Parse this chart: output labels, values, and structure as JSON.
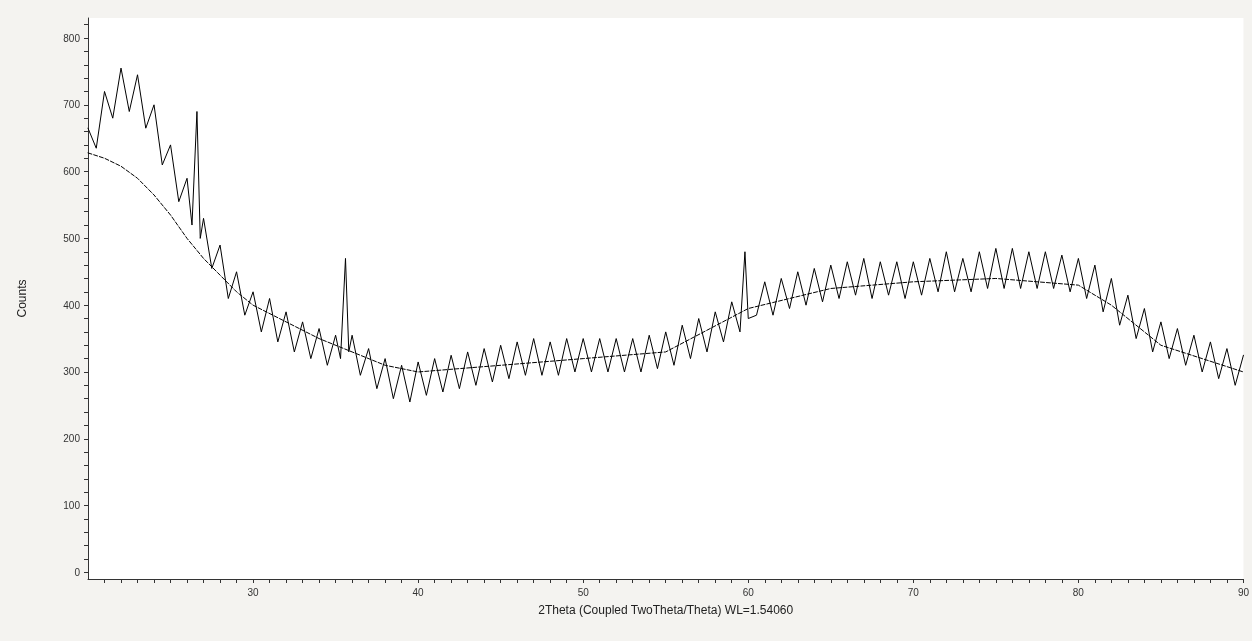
{
  "chart_data": {
    "type": "line",
    "xlabel": "2Theta (Coupled TwoTheta/Theta) WL=1.54060",
    "ylabel": "Counts",
    "xlim": [
      20,
      90
    ],
    "xticks": [
      {
        "value": 21,
        "label": null
      },
      {
        "value": 22,
        "label": null
      },
      {
        "value": 23,
        "label": null
      },
      {
        "value": 24,
        "label": null
      },
      {
        "value": 25,
        "label": null
      },
      {
        "value": 26,
        "label": null
      },
      {
        "value": 27,
        "label": null
      },
      {
        "value": 28,
        "label": null
      },
      {
        "value": 29,
        "label": null
      },
      30,
      {
        "value": 31,
        "label": null
      },
      {
        "value": 32,
        "label": null
      },
      {
        "value": 33,
        "label": null
      },
      {
        "value": 34,
        "label": null
      },
      {
        "value": 35,
        "label": null
      },
      {
        "value": 36,
        "label": null
      },
      {
        "value": 37,
        "label": null
      },
      {
        "value": 38,
        "label": null
      },
      {
        "value": 39,
        "label": null
      },
      40,
      {
        "value": 41,
        "label": null
      },
      {
        "value": 42,
        "label": null
      },
      {
        "value": 43,
        "label": null
      },
      {
        "value": 44,
        "label": null
      },
      {
        "value": 45,
        "label": null
      },
      {
        "value": 46,
        "label": null
      },
      {
        "value": 47,
        "label": null
      },
      {
        "value": 48,
        "label": null
      },
      {
        "value": 49,
        "label": null
      },
      50,
      {
        "value": 51,
        "label": null
      },
      {
        "value": 52,
        "label": null
      },
      {
        "value": 53,
        "label": null
      },
      {
        "value": 54,
        "label": null
      },
      {
        "value": 55,
        "label": null
      },
      {
        "value": 56,
        "label": null
      },
      {
        "value": 57,
        "label": null
      },
      {
        "value": 58,
        "label": null
      },
      {
        "value": 59,
        "label": null
      },
      60,
      {
        "value": 61,
        "label": null
      },
      {
        "value": 62,
        "label": null
      },
      {
        "value": 63,
        "label": null
      },
      {
        "value": 64,
        "label": null
      },
      {
        "value": 65,
        "label": null
      },
      {
        "value": 66,
        "label": null
      },
      {
        "value": 67,
        "label": null
      },
      {
        "value": 68,
        "label": null
      },
      {
        "value": 69,
        "label": null
      },
      70,
      {
        "value": 71,
        "label": null
      },
      {
        "value": 72,
        "label": null
      },
      {
        "value": 73,
        "label": null
      },
      {
        "value": 74,
        "label": null
      },
      {
        "value": 75,
        "label": null
      },
      {
        "value": 76,
        "label": null
      },
      {
        "value": 77,
        "label": null
      },
      {
        "value": 78,
        "label": null
      },
      {
        "value": 79,
        "label": null
      },
      80,
      {
        "value": 81,
        "label": null
      },
      {
        "value": 82,
        "label": null
      },
      {
        "value": 83,
        "label": null
      },
      {
        "value": 84,
        "label": null
      },
      {
        "value": 85,
        "label": null
      },
      {
        "value": 86,
        "label": null
      },
      {
        "value": 87,
        "label": null
      },
      {
        "value": 88,
        "label": null
      },
      {
        "value": 89,
        "label": null
      },
      90
    ],
    "ylim": [
      -10,
      830
    ],
    "yticks": [
      0,
      {
        "value": 20,
        "label": null
      },
      {
        "value": 40,
        "label": null
      },
      {
        "value": 60,
        "label": null
      },
      {
        "value": 80,
        "label": null
      },
      100,
      {
        "value": 120,
        "label": null
      },
      {
        "value": 140,
        "label": null
      },
      {
        "value": 160,
        "label": null
      },
      {
        "value": 180,
        "label": null
      },
      200,
      {
        "value": 220,
        "label": null
      },
      {
        "value": 240,
        "label": null
      },
      {
        "value": 260,
        "label": null
      },
      {
        "value": 280,
        "label": null
      },
      300,
      {
        "value": 320,
        "label": null
      },
      {
        "value": 340,
        "label": null
      },
      {
        "value": 360,
        "label": null
      },
      {
        "value": 380,
        "label": null
      },
      400,
      {
        "value": 420,
        "label": null
      },
      {
        "value": 440,
        "label": null
      },
      {
        "value": 460,
        "label": null
      },
      {
        "value": 480,
        "label": null
      },
      500,
      {
        "value": 520,
        "label": null
      },
      {
        "value": 540,
        "label": null
      },
      {
        "value": 560,
        "label": null
      },
      {
        "value": 580,
        "label": null
      },
      600,
      {
        "value": 620,
        "label": null
      },
      {
        "value": 640,
        "label": null
      },
      {
        "value": 660,
        "label": null
      },
      {
        "value": 680,
        "label": null
      },
      700,
      {
        "value": 720,
        "label": null
      },
      {
        "value": 740,
        "label": null
      },
      {
        "value": 760,
        "label": null
      },
      {
        "value": 780,
        "label": null
      },
      800,
      {
        "value": 820,
        "label": null
      }
    ],
    "grid": false,
    "legend": false,
    "marker": "none",
    "series": [
      {
        "color": "#000000",
        "line_style": "solid",
        "x": [
          20,
          20.5,
          21,
          21.5,
          22,
          22.5,
          23,
          23.5,
          24,
          24.5,
          25,
          25.5,
          26,
          26.3,
          26.6,
          26.8,
          27,
          27.5,
          28,
          28.5,
          29,
          29.5,
          30,
          30.5,
          31,
          31.5,
          32,
          32.5,
          33,
          33.5,
          34,
          34.5,
          35,
          35.3,
          35.6,
          35.8,
          36,
          36.5,
          37,
          37.5,
          38,
          38.5,
          39,
          39.5,
          40,
          40.5,
          41,
          41.5,
          42,
          42.5,
          43,
          43.5,
          44,
          44.5,
          45,
          45.5,
          46,
          46.5,
          47,
          47.5,
          48,
          48.5,
          49,
          49.5,
          50,
          50.5,
          51,
          51.5,
          52,
          52.5,
          53,
          53.5,
          54,
          54.5,
          55,
          55.5,
          56,
          56.5,
          57,
          57.5,
          58,
          58.5,
          59,
          59.5,
          59.8,
          60,
          60.5,
          61,
          61.5,
          62,
          62.5,
          63,
          63.5,
          64,
          64.5,
          65,
          65.5,
          66,
          66.5,
          67,
          67.5,
          68,
          68.5,
          69,
          69.5,
          70,
          70.5,
          71,
          71.5,
          72,
          72.5,
          73,
          73.5,
          74,
          74.5,
          75,
          75.5,
          76,
          76.5,
          77,
          77.5,
          78,
          78.5,
          79,
          79.5,
          80,
          80.5,
          81,
          81.5,
          82,
          82.5,
          83,
          83.5,
          84,
          84.5,
          85,
          85.5,
          86,
          86.5,
          87,
          87.5,
          88,
          88.5,
          89,
          89.5,
          90
        ],
        "values": [
          665,
          635,
          720,
          680,
          755,
          690,
          745,
          665,
          700,
          610,
          640,
          555,
          590,
          520,
          690,
          500,
          530,
          455,
          490,
          410,
          450,
          385,
          420,
          360,
          410,
          345,
          390,
          330,
          375,
          320,
          365,
          310,
          355,
          320,
          470,
          330,
          355,
          295,
          335,
          275,
          320,
          260,
          310,
          255,
          315,
          265,
          320,
          270,
          325,
          275,
          330,
          280,
          335,
          285,
          340,
          290,
          345,
          295,
          350,
          295,
          345,
          295,
          350,
          300,
          350,
          300,
          350,
          300,
          350,
          300,
          350,
          300,
          355,
          305,
          360,
          310,
          370,
          320,
          380,
          330,
          390,
          345,
          405,
          360,
          480,
          380,
          385,
          435,
          385,
          440,
          395,
          450,
          400,
          455,
          405,
          460,
          410,
          465,
          415,
          470,
          410,
          465,
          415,
          465,
          410,
          465,
          415,
          470,
          420,
          480,
          420,
          470,
          420,
          480,
          425,
          485,
          425,
          485,
          425,
          480,
          425,
          480,
          425,
          475,
          420,
          470,
          410,
          460,
          390,
          440,
          370,
          415,
          350,
          395,
          330,
          375,
          320,
          365,
          310,
          355,
          300,
          345,
          290,
          335,
          280,
          325
        ]
      },
      {
        "color": "#000000",
        "line_style": "dashed",
        "x": [
          20,
          21,
          22,
          23,
          24,
          25,
          26,
          27,
          28,
          29,
          30,
          32,
          34,
          36,
          38,
          40,
          45,
          50,
          55,
          60,
          65,
          70,
          75,
          80,
          82,
          85,
          90
        ],
        "values": [
          628,
          620,
          608,
          590,
          565,
          535,
          500,
          470,
          445,
          420,
          400,
          375,
          350,
          330,
          310,
          300,
          310,
          320,
          330,
          395,
          425,
          435,
          440,
          430,
          400,
          340,
          300
        ]
      }
    ]
  }
}
